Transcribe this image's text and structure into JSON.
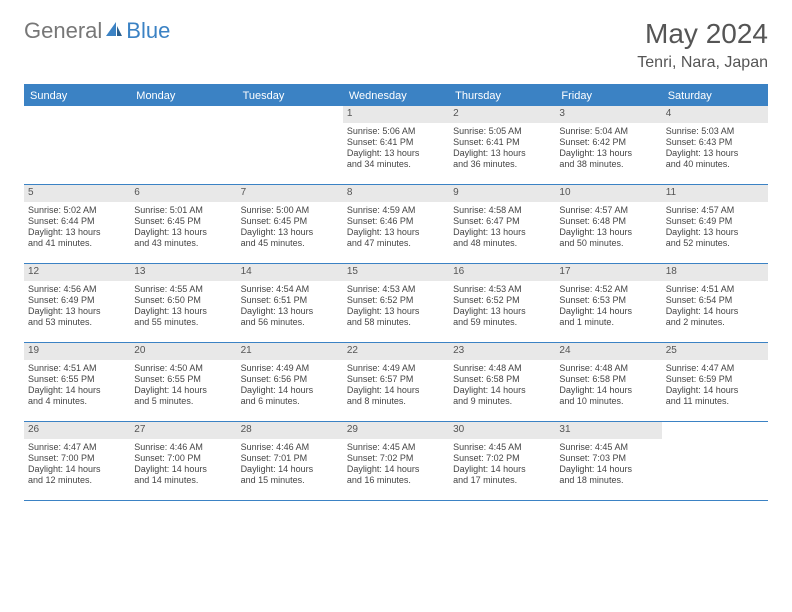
{
  "logo": {
    "part1": "General",
    "part2": "Blue"
  },
  "title": "May 2024",
  "location": "Tenri, Nara, Japan",
  "colors": {
    "accent": "#3b82c4",
    "header_text": "#ffffff",
    "daynum_bg": "#e8e8e8",
    "body_text": "#444444",
    "title_text": "#555555"
  },
  "day_headers": [
    "Sunday",
    "Monday",
    "Tuesday",
    "Wednesday",
    "Thursday",
    "Friday",
    "Saturday"
  ],
  "weeks": [
    [
      {
        "empty": true
      },
      {
        "empty": true
      },
      {
        "empty": true
      },
      {
        "num": "1",
        "sunrise": "Sunrise: 5:06 AM",
        "sunset": "Sunset: 6:41 PM",
        "day1": "Daylight: 13 hours",
        "day2": "and 34 minutes."
      },
      {
        "num": "2",
        "sunrise": "Sunrise: 5:05 AM",
        "sunset": "Sunset: 6:41 PM",
        "day1": "Daylight: 13 hours",
        "day2": "and 36 minutes."
      },
      {
        "num": "3",
        "sunrise": "Sunrise: 5:04 AM",
        "sunset": "Sunset: 6:42 PM",
        "day1": "Daylight: 13 hours",
        "day2": "and 38 minutes."
      },
      {
        "num": "4",
        "sunrise": "Sunrise: 5:03 AM",
        "sunset": "Sunset: 6:43 PM",
        "day1": "Daylight: 13 hours",
        "day2": "and 40 minutes."
      }
    ],
    [
      {
        "num": "5",
        "sunrise": "Sunrise: 5:02 AM",
        "sunset": "Sunset: 6:44 PM",
        "day1": "Daylight: 13 hours",
        "day2": "and 41 minutes."
      },
      {
        "num": "6",
        "sunrise": "Sunrise: 5:01 AM",
        "sunset": "Sunset: 6:45 PM",
        "day1": "Daylight: 13 hours",
        "day2": "and 43 minutes."
      },
      {
        "num": "7",
        "sunrise": "Sunrise: 5:00 AM",
        "sunset": "Sunset: 6:45 PM",
        "day1": "Daylight: 13 hours",
        "day2": "and 45 minutes."
      },
      {
        "num": "8",
        "sunrise": "Sunrise: 4:59 AM",
        "sunset": "Sunset: 6:46 PM",
        "day1": "Daylight: 13 hours",
        "day2": "and 47 minutes."
      },
      {
        "num": "9",
        "sunrise": "Sunrise: 4:58 AM",
        "sunset": "Sunset: 6:47 PM",
        "day1": "Daylight: 13 hours",
        "day2": "and 48 minutes."
      },
      {
        "num": "10",
        "sunrise": "Sunrise: 4:57 AM",
        "sunset": "Sunset: 6:48 PM",
        "day1": "Daylight: 13 hours",
        "day2": "and 50 minutes."
      },
      {
        "num": "11",
        "sunrise": "Sunrise: 4:57 AM",
        "sunset": "Sunset: 6:49 PM",
        "day1": "Daylight: 13 hours",
        "day2": "and 52 minutes."
      }
    ],
    [
      {
        "num": "12",
        "sunrise": "Sunrise: 4:56 AM",
        "sunset": "Sunset: 6:49 PM",
        "day1": "Daylight: 13 hours",
        "day2": "and 53 minutes."
      },
      {
        "num": "13",
        "sunrise": "Sunrise: 4:55 AM",
        "sunset": "Sunset: 6:50 PM",
        "day1": "Daylight: 13 hours",
        "day2": "and 55 minutes."
      },
      {
        "num": "14",
        "sunrise": "Sunrise: 4:54 AM",
        "sunset": "Sunset: 6:51 PM",
        "day1": "Daylight: 13 hours",
        "day2": "and 56 minutes."
      },
      {
        "num": "15",
        "sunrise": "Sunrise: 4:53 AM",
        "sunset": "Sunset: 6:52 PM",
        "day1": "Daylight: 13 hours",
        "day2": "and 58 minutes."
      },
      {
        "num": "16",
        "sunrise": "Sunrise: 4:53 AM",
        "sunset": "Sunset: 6:52 PM",
        "day1": "Daylight: 13 hours",
        "day2": "and 59 minutes."
      },
      {
        "num": "17",
        "sunrise": "Sunrise: 4:52 AM",
        "sunset": "Sunset: 6:53 PM",
        "day1": "Daylight: 14 hours",
        "day2": "and 1 minute."
      },
      {
        "num": "18",
        "sunrise": "Sunrise: 4:51 AM",
        "sunset": "Sunset: 6:54 PM",
        "day1": "Daylight: 14 hours",
        "day2": "and 2 minutes."
      }
    ],
    [
      {
        "num": "19",
        "sunrise": "Sunrise: 4:51 AM",
        "sunset": "Sunset: 6:55 PM",
        "day1": "Daylight: 14 hours",
        "day2": "and 4 minutes."
      },
      {
        "num": "20",
        "sunrise": "Sunrise: 4:50 AM",
        "sunset": "Sunset: 6:55 PM",
        "day1": "Daylight: 14 hours",
        "day2": "and 5 minutes."
      },
      {
        "num": "21",
        "sunrise": "Sunrise: 4:49 AM",
        "sunset": "Sunset: 6:56 PM",
        "day1": "Daylight: 14 hours",
        "day2": "and 6 minutes."
      },
      {
        "num": "22",
        "sunrise": "Sunrise: 4:49 AM",
        "sunset": "Sunset: 6:57 PM",
        "day1": "Daylight: 14 hours",
        "day2": "and 8 minutes."
      },
      {
        "num": "23",
        "sunrise": "Sunrise: 4:48 AM",
        "sunset": "Sunset: 6:58 PM",
        "day1": "Daylight: 14 hours",
        "day2": "and 9 minutes."
      },
      {
        "num": "24",
        "sunrise": "Sunrise: 4:48 AM",
        "sunset": "Sunset: 6:58 PM",
        "day1": "Daylight: 14 hours",
        "day2": "and 10 minutes."
      },
      {
        "num": "25",
        "sunrise": "Sunrise: 4:47 AM",
        "sunset": "Sunset: 6:59 PM",
        "day1": "Daylight: 14 hours",
        "day2": "and 11 minutes."
      }
    ],
    [
      {
        "num": "26",
        "sunrise": "Sunrise: 4:47 AM",
        "sunset": "Sunset: 7:00 PM",
        "day1": "Daylight: 14 hours",
        "day2": "and 12 minutes."
      },
      {
        "num": "27",
        "sunrise": "Sunrise: 4:46 AM",
        "sunset": "Sunset: 7:00 PM",
        "day1": "Daylight: 14 hours",
        "day2": "and 14 minutes."
      },
      {
        "num": "28",
        "sunrise": "Sunrise: 4:46 AM",
        "sunset": "Sunset: 7:01 PM",
        "day1": "Daylight: 14 hours",
        "day2": "and 15 minutes."
      },
      {
        "num": "29",
        "sunrise": "Sunrise: 4:45 AM",
        "sunset": "Sunset: 7:02 PM",
        "day1": "Daylight: 14 hours",
        "day2": "and 16 minutes."
      },
      {
        "num": "30",
        "sunrise": "Sunrise: 4:45 AM",
        "sunset": "Sunset: 7:02 PM",
        "day1": "Daylight: 14 hours",
        "day2": "and 17 minutes."
      },
      {
        "num": "31",
        "sunrise": "Sunrise: 4:45 AM",
        "sunset": "Sunset: 7:03 PM",
        "day1": "Daylight: 14 hours",
        "day2": "and 18 minutes."
      },
      {
        "empty": true
      }
    ]
  ]
}
